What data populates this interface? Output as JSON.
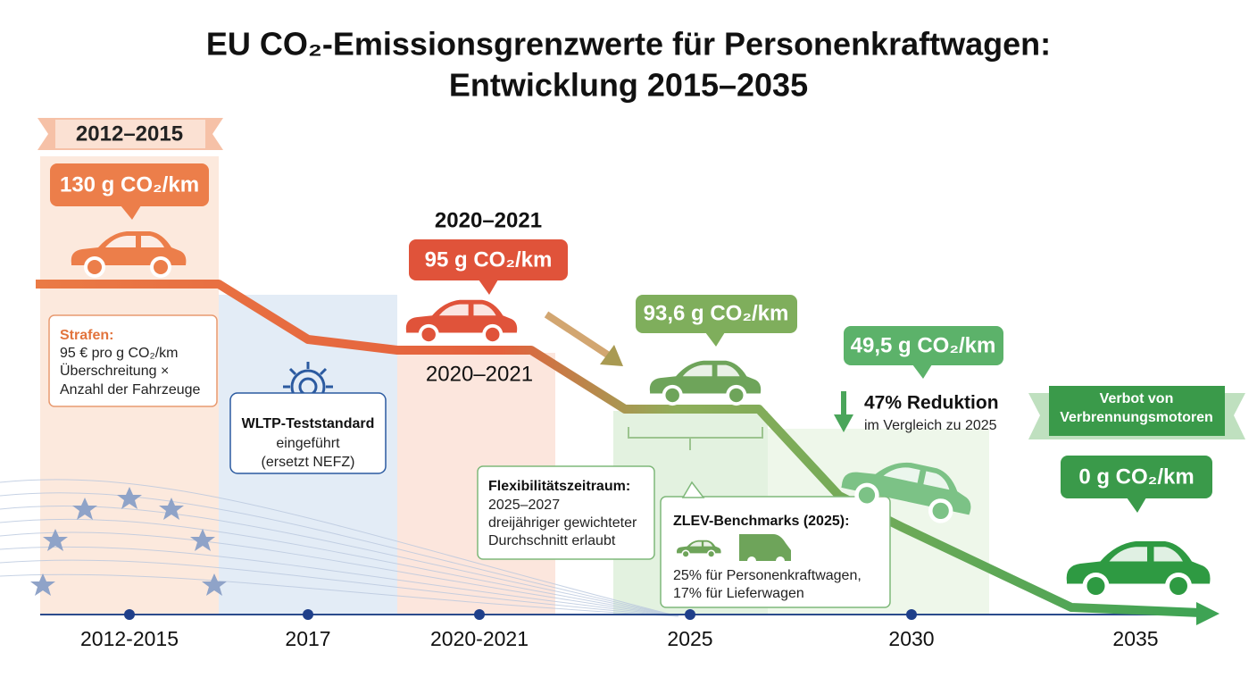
{
  "title": [
    "EU CO₂-Emissionsgrenzwerte für Personenkraftwagen:",
    "Entwicklung 2015–2035"
  ],
  "timeline": [
    "2012-2015",
    "2017",
    "2020-2021",
    "2025",
    "2030",
    "2035"
  ],
  "period_2012": {
    "banner": "2012–2015",
    "limit": "130 g CO₂/km"
  },
  "period_2020": {
    "heading": "2020–2021",
    "limit": "95 g CO₂/km",
    "car_label": "2020–2021"
  },
  "period_2025": {
    "limit": "93,6 g CO₂/km"
  },
  "period_2030": {
    "limit": "49,5 g CO₂/km",
    "reduction": "47% Reduktion",
    "reduction_note": "im Vergleich zu 2025"
  },
  "period_2035": {
    "banner": [
      "Verbot von",
      "Verbrennungsmotoren"
    ],
    "limit": "0 g CO₂/km"
  },
  "penalties": {
    "heading": "Strafen:",
    "lines": [
      "95 € pro g CO₂/km",
      "Überschreitung ×",
      "Anzahl der Fahrzeuge"
    ]
  },
  "wltp": {
    "heading": "WLTP-Teststandard",
    "lines": [
      "eingeführt",
      "(ersetzt NEFZ)"
    ]
  },
  "flexibility": {
    "heading": "Flexibilitätszeitraum:",
    "lines": [
      "2025–2027",
      "dreijähriger gewichteter",
      "Durchschnitt erlaubt"
    ]
  },
  "zlev": {
    "heading": "ZLEV-Benchmarks (2025):",
    "lines": [
      "25% für Personenkraftwagen,",
      "17% für Lieferwagen"
    ]
  }
}
